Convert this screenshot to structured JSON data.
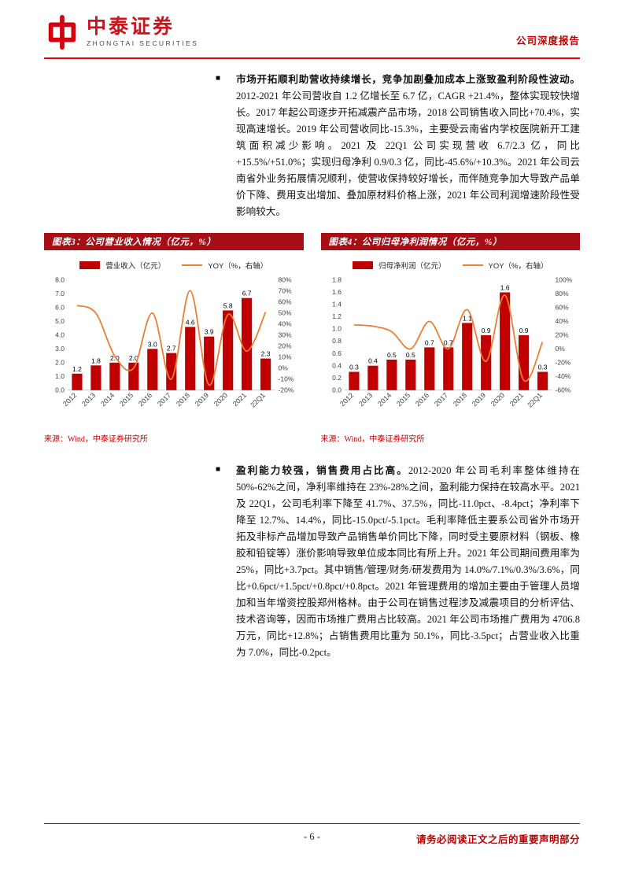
{
  "ui": {
    "bullet_glyph": "■"
  },
  "header": {
    "logo_cn": "中泰证券",
    "logo_en": "ZHONGTAI SECURITIES",
    "report_type": "公司深度报告",
    "brand_red": "#E60012",
    "logo_red": "#D7000F"
  },
  "paragraphs": [
    {
      "lead": "市场开拓顺利助营收持续增长，竞争加剧叠加成本上涨致盈利阶段性波动。",
      "body": "2012-2021 年公司营收自 1.2 亿增长至 6.7 亿，CAGR +21.4%，整体实现较快增长。2017 年起公司逐步开拓减震产品市场，2018 公司销售收入同比+70.4%，实现高速增长。2019 年公司营收同比-15.3%，主要受云南省内学校医院新开工建筑面积减少影响。2021 及 22Q1 公司实现营收 6.7/2.3 亿，同比+15.5%/+51.0%；实现归母净利 0.9/0.3 亿，同比-45.6%/+10.3%。2021 年公司云南省外业务拓展情况顺利，使营收保持较好增长，而伴随竞争加大导致产品单价下降、费用支出增加、叠加原材料价格上涨，2021 年公司利润增速阶段性受影响较大。"
    },
    {
      "lead": "盈利能力较强，销售费用占比高。",
      "body": "2012-2020 年公司毛利率整体维持在 50%-62%之间，净利率维持在 23%-28%之间，盈利能力保持在较高水平。2021 及 22Q1，公司毛利率下降至 41.7%、37.5%，同比-11.0pct、-8.4pct；净利率下降至 12.7%、14.4%，同比-15.0pct/-5.1pct。毛利率降低主要系公司省外市场开拓及非标产品增加导致产品销售单价同比下降，同时受主要原材料（钢板、橡胶和铅锭等）涨价影响导致单位成本同比有所上升。2021 年公司期间费用率为 25%，同比+3.7pct。其中销售/管理/财务/研发费用为 14.0%/7.1%/0.3%/3.6%，同比+0.6pct/+1.5pct/+0.8pct/+0.8pct。2021 年管理费用的增加主要由于管理人员增加和当年增资控股郑州格林。由于公司在销售过程涉及减震项目的分析评估、技术咨询等，因而市场推广费用占比较高。2021 年公司市场推广费用为 4706.8 万元，同比+12.8%；占销售费用比重为 50.1%，同比-3.5pct；占营业收入比重为 7.0%，同比-0.2pct。"
    }
  ],
  "chart_data": [
    {
      "type": "bar+line",
      "title": "图表3：公司营业收入情况（亿元，%）",
      "categories": [
        "2012",
        "2013",
        "2014",
        "2015",
        "2016",
        "2017",
        "2018",
        "2019",
        "2020",
        "2021",
        "22Q1"
      ],
      "bars": {
        "name": "营业收入（亿元）",
        "color": "#C00000",
        "values": [
          1.2,
          1.8,
          2.0,
          2.0,
          3.0,
          2.7,
          4.6,
          3.9,
          5.8,
          6.7,
          2.3
        ]
      },
      "line": {
        "name": "YOY（%，右轴）",
        "color": "#ED7D31",
        "values": [
          57,
          50,
          11,
          0,
          50,
          -10,
          70.4,
          -15.3,
          48.7,
          15.5,
          51.0
        ]
      },
      "left_axis": {
        "min": 0,
        "max": 8,
        "step": 1
      },
      "right_axis": {
        "min": -20,
        "max": 80,
        "step": 10
      },
      "grid": false,
      "legend_position": "top",
      "source": "来源：Wind，中泰证券研究所"
    },
    {
      "type": "bar+line",
      "title": "图表4：公司归母净利润情况（亿元，%）",
      "categories": [
        "2012",
        "2013",
        "2014",
        "2015",
        "2016",
        "2017",
        "2018",
        "2019",
        "2020",
        "2021",
        "22Q1"
      ],
      "bars": {
        "name": "归母净利润（亿元）",
        "color": "#C00000",
        "values": [
          0.3,
          0.4,
          0.5,
          0.5,
          0.7,
          0.7,
          1.1,
          0.9,
          1.6,
          0.9,
          0.3
        ]
      },
      "line": {
        "name": "YOY（%，右轴）",
        "color": "#ED7D31",
        "values": [
          35,
          33,
          25,
          0,
          40,
          0,
          57,
          -18,
          78,
          -45.6,
          10.3
        ]
      },
      "left_axis": {
        "min": 0,
        "max": 1.8,
        "step": 0.2
      },
      "right_axis": {
        "min": -60,
        "max": 100,
        "step": 20
      },
      "grid": false,
      "legend_position": "top",
      "source": "来源：Wind，中泰证券研究所"
    }
  ],
  "page": {
    "number_label": "- 6 -",
    "footer_notice": "请务必阅读正文之后的重要声明部分"
  }
}
